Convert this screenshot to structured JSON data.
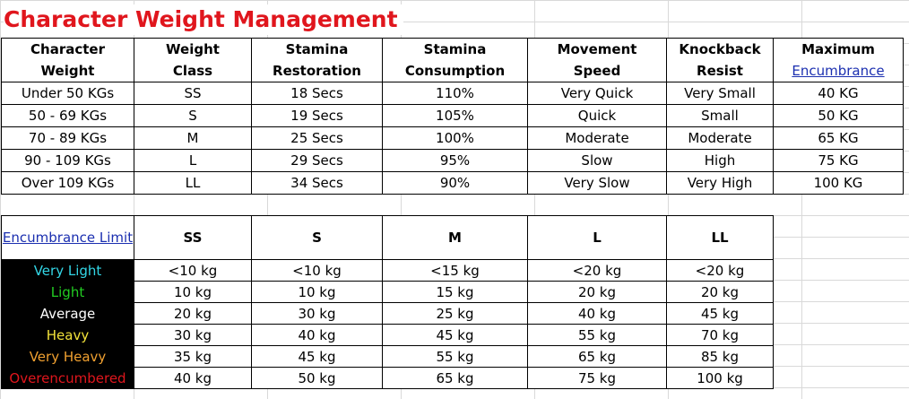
{
  "title": "Character Weight Management",
  "weight_table": {
    "headers": [
      {
        "line1": "Character",
        "line2": "Weight"
      },
      {
        "line1": "Weight",
        "line2": "Class"
      },
      {
        "line1": "Stamina",
        "line2": "Restoration"
      },
      {
        "line1": "Stamina",
        "line2": "Consumption"
      },
      {
        "line1": "Movement",
        "line2": "Speed"
      },
      {
        "line1": "Knockback",
        "line2": "Resist"
      },
      {
        "line1": "Maximum",
        "line2": "Encumbrance"
      }
    ],
    "rows": [
      [
        "Under 50 KGs",
        "SS",
        "18 Secs",
        "110%",
        "Very Quick",
        "Very Small",
        "40 KG"
      ],
      [
        "50 - 69 KGs",
        "S",
        "19 Secs",
        "105%",
        "Quick",
        "Small",
        "50 KG"
      ],
      [
        "70 - 89 KGs",
        "M",
        "25 Secs",
        "100%",
        "Moderate",
        "Moderate",
        "65 KG"
      ],
      [
        "90 - 109 KGs",
        "L",
        "29 Secs",
        "95%",
        "Slow",
        "High",
        "75 KG"
      ],
      [
        "Over 109 KGs",
        "LL",
        "34 Secs",
        "90%",
        "Very Slow",
        "Very High",
        "100 KG"
      ]
    ]
  },
  "encumbrance_table": {
    "corner_label": "Encumbrance Limit",
    "classes": [
      "SS",
      "S",
      "M",
      "L",
      "LL"
    ],
    "rows": [
      {
        "label": "Very Light",
        "color": "#33d6e6",
        "values": [
          "<10 kg",
          "<10 kg",
          "<15 kg",
          "<20 kg",
          "<20 kg"
        ]
      },
      {
        "label": "Light",
        "color": "#22cc22",
        "values": [
          "10 kg",
          "10 kg",
          "15 kg",
          "20 kg",
          "20 kg"
        ]
      },
      {
        "label": "Average",
        "color": "#ffffff",
        "values": [
          "20 kg",
          "30 kg",
          "25 kg",
          "40 kg",
          "45 kg"
        ]
      },
      {
        "label": "Heavy",
        "color": "#f2e23a",
        "values": [
          "30 kg",
          "40 kg",
          "45 kg",
          "55 kg",
          "70 kg"
        ]
      },
      {
        "label": "Very Heavy",
        "color": "#f0a030",
        "values": [
          "35 kg",
          "45 kg",
          "55 kg",
          "65 kg",
          "85 kg"
        ]
      },
      {
        "label": "Overencumbered",
        "color": "#e0161d",
        "values": [
          "40 kg",
          "50 kg",
          "65 kg",
          "75 kg",
          "100 kg"
        ]
      }
    ]
  },
  "colors": {
    "title": "#e0161d",
    "link": "#1b2fb0",
    "label_background": "#000000"
  }
}
